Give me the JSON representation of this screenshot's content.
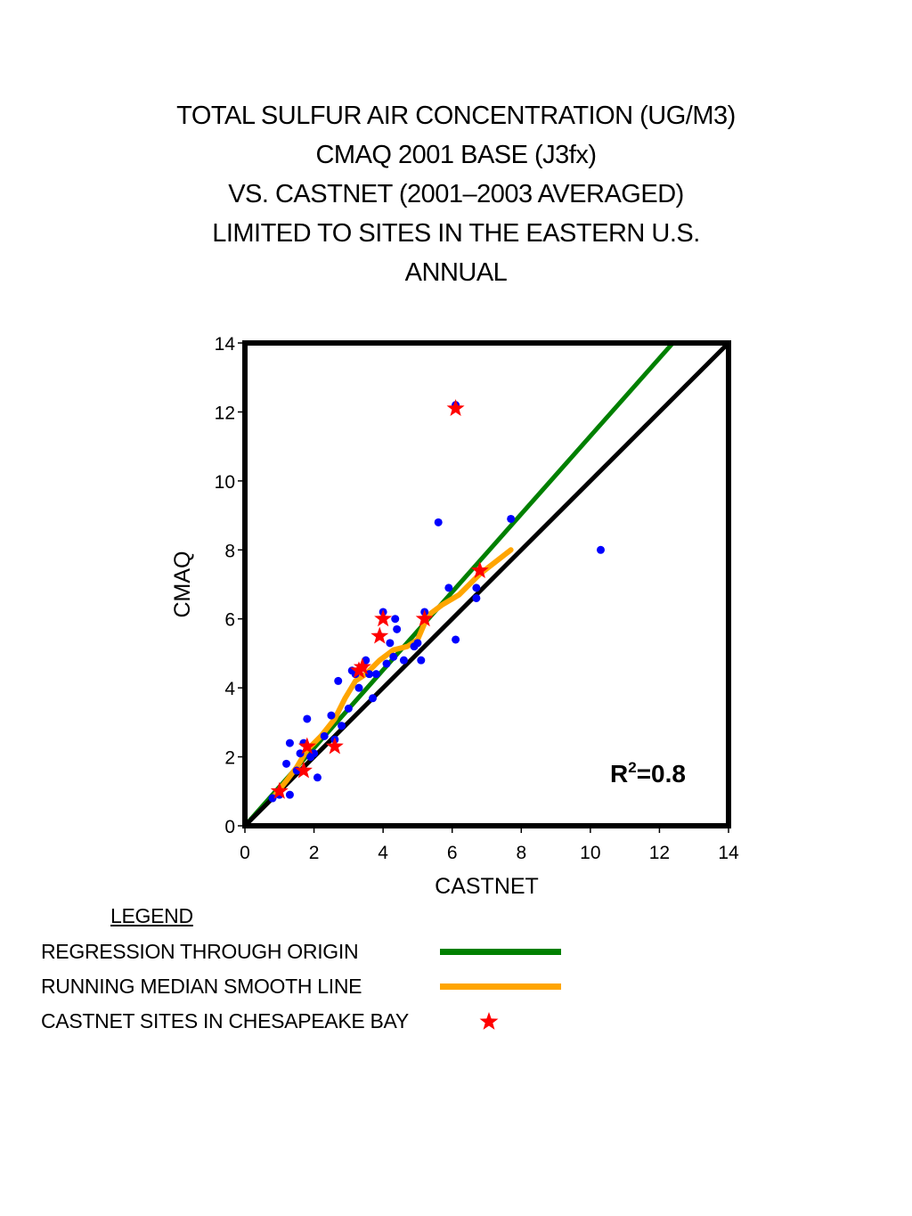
{
  "title_lines": [
    "TOTAL SULFUR AIR CONCENTRATION (UG/M3)",
    "CMAQ 2001 BASE (J3fx)",
    "VS. CASTNET (2001–2003 AVERAGED)",
    "LIMITED TO SITES IN THE EASTERN U.S.",
    "ANNUAL"
  ],
  "legend": {
    "heading": "LEGEND",
    "items": [
      {
        "label": "REGRESSION THROUGH ORIGIN",
        "symbol": "line",
        "color": "#008000"
      },
      {
        "label": "RUNNING MEDIAN SMOOTH LINE",
        "symbol": "line",
        "color": "#FFA500"
      },
      {
        "label": "CASTNET SITES IN CHESAPEAKE BAY",
        "symbol": "star",
        "color": "#FF0000"
      }
    ]
  },
  "chart_data": {
    "type": "scatter",
    "xlabel": "CASTNET",
    "ylabel": "CMAQ",
    "xlim": [
      0,
      14
    ],
    "ylim": [
      0,
      14
    ],
    "xticks": [
      0,
      2,
      4,
      6,
      8,
      10,
      12,
      14
    ],
    "yticks": [
      0,
      2,
      4,
      6,
      8,
      10,
      12,
      14
    ],
    "grid": false,
    "annotation": {
      "base": "R",
      "sup": "2",
      "rest": "=0.8"
    },
    "colors": {
      "points": "#0000FF",
      "stars": "#FF0000",
      "regression": "#008000",
      "smooth": "#FFA500",
      "identity": "#000000"
    },
    "points": [
      [
        0.8,
        0.8
      ],
      [
        1.0,
        0.9
      ],
      [
        1.2,
        1.8
      ],
      [
        1.3,
        2.4
      ],
      [
        1.3,
        0.9
      ],
      [
        1.5,
        1.6
      ],
      [
        1.6,
        2.1
      ],
      [
        1.7,
        2.4
      ],
      [
        1.8,
        3.1
      ],
      [
        1.9,
        2.0
      ],
      [
        2.0,
        2.1
      ],
      [
        2.1,
        1.4
      ],
      [
        2.3,
        2.6
      ],
      [
        2.5,
        3.2
      ],
      [
        2.6,
        2.5
      ],
      [
        2.7,
        4.2
      ],
      [
        2.8,
        2.9
      ],
      [
        3.0,
        3.4
      ],
      [
        3.1,
        4.5
      ],
      [
        3.2,
        4.4
      ],
      [
        3.3,
        4.0
      ],
      [
        3.4,
        4.6
      ],
      [
        3.5,
        4.8
      ],
      [
        3.6,
        4.4
      ],
      [
        3.7,
        3.7
      ],
      [
        3.8,
        4.4
      ],
      [
        3.9,
        5.5
      ],
      [
        4.0,
        6.2
      ],
      [
        4.1,
        4.7
      ],
      [
        4.2,
        5.3
      ],
      [
        4.3,
        4.9
      ],
      [
        4.35,
        6.0
      ],
      [
        4.4,
        5.7
      ],
      [
        4.6,
        4.8
      ],
      [
        4.9,
        5.2
      ],
      [
        5.0,
        5.3
      ],
      [
        5.1,
        4.8
      ],
      [
        5.2,
        6.2
      ],
      [
        5.6,
        8.8
      ],
      [
        5.9,
        6.9
      ],
      [
        6.1,
        12.2
      ],
      [
        6.1,
        5.4
      ],
      [
        6.7,
        6.6
      ],
      [
        6.7,
        6.9
      ],
      [
        6.8,
        7.4
      ],
      [
        7.7,
        8.9
      ],
      [
        10.3,
        8.0
      ]
    ],
    "chesapeake_sites": [
      [
        1.0,
        1.0
      ],
      [
        1.7,
        1.6
      ],
      [
        1.8,
        2.3
      ],
      [
        2.6,
        2.3
      ],
      [
        3.3,
        4.5
      ],
      [
        3.4,
        4.6
      ],
      [
        3.9,
        5.5
      ],
      [
        4.0,
        6.0
      ],
      [
        5.2,
        6.0
      ],
      [
        6.1,
        12.1
      ],
      [
        6.8,
        7.4
      ]
    ],
    "regression_slope": 1.13,
    "smooth_line": [
      [
        0.8,
        0.8
      ],
      [
        1.2,
        1.3
      ],
      [
        1.5,
        1.7
      ],
      [
        1.8,
        2.2
      ],
      [
        2.2,
        2.6
      ],
      [
        2.6,
        3.1
      ],
      [
        2.9,
        3.7
      ],
      [
        3.2,
        4.2
      ],
      [
        3.5,
        4.4
      ],
      [
        3.9,
        4.8
      ],
      [
        4.3,
        5.1
      ],
      [
        4.7,
        5.2
      ],
      [
        5.0,
        5.4
      ],
      [
        5.3,
        6.1
      ],
      [
        5.7,
        6.4
      ],
      [
        6.2,
        6.7
      ],
      [
        6.8,
        7.3
      ],
      [
        7.7,
        8.0
      ]
    ]
  }
}
